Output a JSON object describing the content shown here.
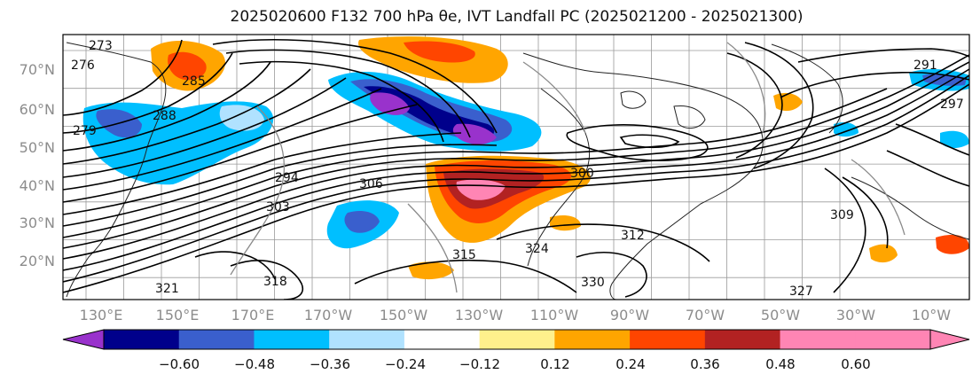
{
  "title": "2025020600 F132 700 hPa θe, IVT Landfall PC (2025021200 - 2025021300)",
  "lat_labels": [
    "70°N",
    "60°N",
    "50°N",
    "40°N",
    "30°N",
    "20°N"
  ],
  "lon_labels": [
    "130°E",
    "150°E",
    "170°E",
    "170°W",
    "150°W",
    "130°W",
    "110°W",
    "90°W",
    "70°W",
    "50°W",
    "30°W",
    "10°W"
  ],
  "colorbar": {
    "ticks": [
      "−0.60",
      "−0.48",
      "−0.36",
      "−0.24",
      "−0.12",
      "0.12",
      "0.24",
      "0.36",
      "0.48",
      "0.60"
    ],
    "colors": [
      "#9932cc",
      "#00008b",
      "#3a5fcd",
      "#00bfff",
      "#b0e2ff",
      "#ffffff",
      "#fff08c",
      "#ffa500",
      "#ff4500",
      "#b22222",
      "#ff85b4",
      "#ff85b4"
    ]
  },
  "contour_labels": [
    "273",
    "276",
    "285",
    "288",
    "279",
    "294",
    "303",
    "306",
    "315",
    "318",
    "321",
    "324",
    "327",
    "330",
    "291",
    "297",
    "300",
    "309",
    "312"
  ]
}
